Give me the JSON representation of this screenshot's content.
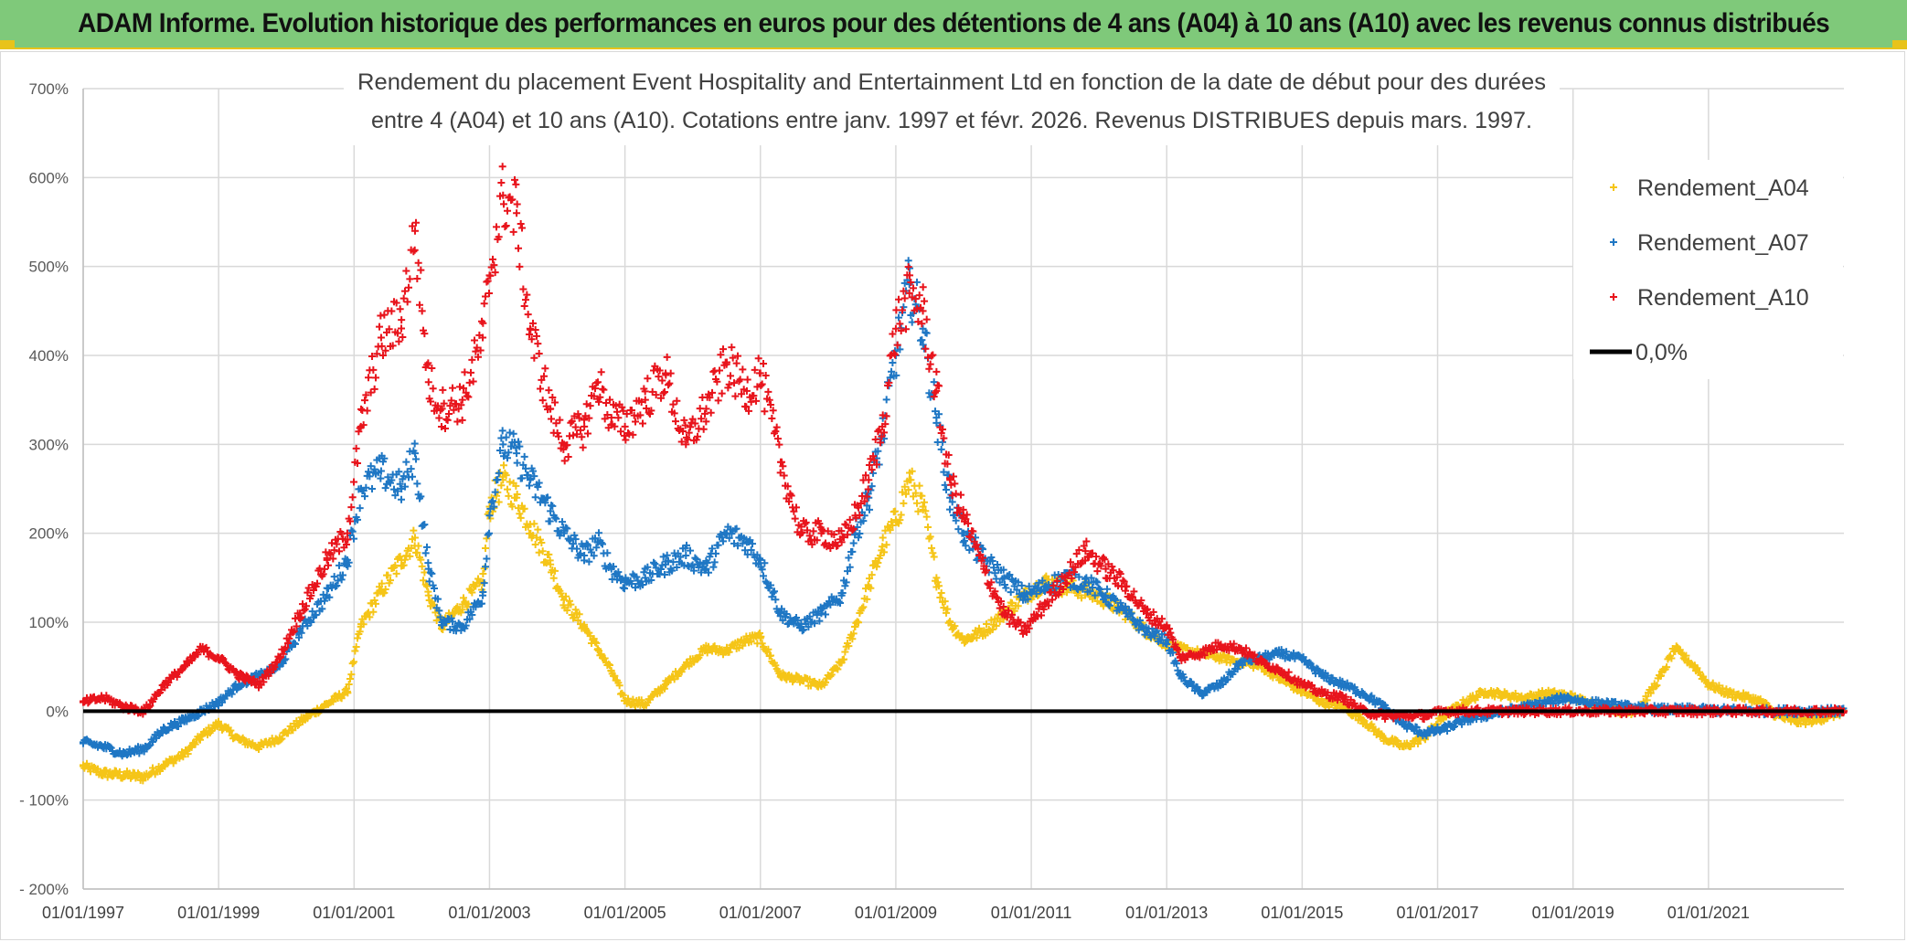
{
  "header": {
    "title": "ADAM Informe. Evolution historique des performances en euros pour des détentions de 4 ans (A04) à 10 ans (A10) avec les revenus connus distribués"
  },
  "colors": {
    "banner_bg": "#7fc97a",
    "banner_accent": "#e8c31a",
    "a04": "#f5c518",
    "a07": "#1f77c4",
    "a10": "#e8141c",
    "zero": "#000000",
    "grid": "#d9d9d9"
  },
  "chart_data": {
    "type": "scatter",
    "title_lines": [
      "Rendement du placement Event Hospitality and Entertainment Ltd en fonction de la date de début pour des durées",
      "entre 4 (A04) et 10 ans (A10). Cotations entre janv. 1997 et févr. 2026. Revenus DISTRIBUES depuis mars. 1997."
    ],
    "x_unit": "year",
    "xlim": [
      1997,
      2023.0
    ],
    "ylim": [
      -200,
      700
    ],
    "y_ticks": [
      -200,
      -100,
      0,
      100,
      200,
      300,
      400,
      500,
      600,
      700
    ],
    "y_tick_labels": [
      "- 200%",
      "- 100%",
      "0%",
      "100%",
      "200%",
      "300%",
      "400%",
      "500%",
      "600%",
      "700%"
    ],
    "x_ticks": [
      1997,
      1999,
      2001,
      2003,
      2005,
      2007,
      2009,
      2011,
      2013,
      2015,
      2017,
      2019,
      2021
    ],
    "x_tick_labels": [
      "01/01/1997",
      "01/01/1999",
      "01/01/2001",
      "01/01/2003",
      "01/01/2005",
      "01/01/2007",
      "01/01/2009",
      "01/01/2011",
      "01/01/2013",
      "01/01/2015",
      "01/01/2017",
      "01/01/2019",
      "01/01/2021"
    ],
    "legend_position": "top-right",
    "series": [
      {
        "name": "Rendement_A04",
        "marker": "plus",
        "x": [
          1997.0,
          1997.3,
          1997.6,
          1997.9,
          1998.2,
          1998.5,
          1998.75,
          1999.0,
          1999.3,
          1999.6,
          1999.9,
          2000.2,
          2000.6,
          2000.9,
          2001.1,
          2001.4,
          2001.7,
          2001.9,
          2002.1,
          2002.3,
          2002.6,
          2002.9,
          2003.0,
          2003.2,
          2003.4,
          2003.6,
          2003.9,
          2004.1,
          2004.4,
          2004.6,
          2004.8,
          2005.0,
          2005.3,
          2005.6,
          2005.9,
          2006.2,
          2006.5,
          2006.8,
          2007.0,
          2007.3,
          2007.6,
          2007.9,
          2008.2,
          2008.4,
          2008.6,
          2008.8,
          2009.0,
          2009.2,
          2009.4,
          2009.6,
          2009.8,
          2010.0,
          2010.3,
          2010.6,
          2010.9,
          2011.2,
          2011.5,
          2011.8,
          2012.1,
          2012.4,
          2012.7,
          2013.0,
          2013.2,
          2013.5,
          2013.8,
          2014.1,
          2014.4,
          2014.7,
          2015.0,
          2015.3,
          2015.6,
          2015.9,
          2016.2,
          2016.5,
          2016.8,
          2017.1,
          2017.4,
          2017.7,
          2018.0,
          2018.3,
          2018.6,
          2018.9,
          2019.2,
          2019.5,
          2019.8,
          2020.0,
          2020.3,
          2020.5,
          2020.8,
          2021.0,
          2021.3,
          2021.6,
          2021.8,
          2022.0,
          2022.3,
          2022.6,
          2023.0
        ],
        "y": [
          -62,
          -70,
          -72,
          -74,
          -60,
          -48,
          -28,
          -14,
          -32,
          -40,
          -30,
          -12,
          8,
          22,
          95,
          135,
          170,
          195,
          130,
          95,
          120,
          145,
          230,
          260,
          240,
          210,
          165,
          125,
          95,
          70,
          45,
          12,
          8,
          30,
          52,
          70,
          68,
          80,
          82,
          40,
          35,
          28,
          55,
          95,
          140,
          185,
          215,
          260,
          230,
          150,
          100,
          80,
          90,
          110,
          130,
          145,
          140,
          135,
          125,
          110,
          90,
          75,
          70,
          65,
          60,
          55,
          50,
          35,
          22,
          10,
          5,
          -10,
          -30,
          -40,
          -30,
          -5,
          10,
          22,
          18,
          15,
          20,
          18,
          10,
          5,
          -2,
          5,
          40,
          70,
          50,
          30,
          20,
          15,
          10,
          -5,
          -12,
          -10,
          0
        ]
      },
      {
        "name": "Rendement_A07",
        "marker": "plus",
        "x": [
          1997.0,
          1997.3,
          1997.6,
          1997.9,
          1998.2,
          1998.5,
          1998.75,
          1999.0,
          1999.3,
          1999.6,
          1999.9,
          2000.2,
          2000.6,
          2000.9,
          2001.1,
          2001.4,
          2001.7,
          2001.9,
          2002.1,
          2002.3,
          2002.6,
          2002.9,
          2003.0,
          2003.2,
          2003.4,
          2003.6,
          2003.9,
          2004.1,
          2004.4,
          2004.6,
          2004.8,
          2005.0,
          2005.3,
          2005.6,
          2005.9,
          2006.2,
          2006.5,
          2006.8,
          2007.0,
          2007.3,
          2007.6,
          2007.9,
          2008.2,
          2008.4,
          2008.6,
          2008.8,
          2009.0,
          2009.2,
          2009.4,
          2009.6,
          2009.8,
          2010.0,
          2010.3,
          2010.6,
          2010.9,
          2011.2,
          2011.5,
          2011.8,
          2012.1,
          2012.4,
          2012.7,
          2013.0,
          2013.2,
          2013.5,
          2013.8,
          2014.1,
          2014.4,
          2014.7,
          2015.0,
          2015.3,
          2015.6,
          2015.9,
          2016.2,
          2016.5,
          2016.8,
          2017.1,
          2017.4,
          2017.7,
          2018.0,
          2018.3,
          2018.6,
          2018.9,
          2019.2,
          2019.5,
          2019.8,
          2020.0,
          2020.3,
          2020.5,
          2020.8,
          2021.0,
          2021.3,
          2021.6,
          2021.8,
          2022.0,
          2022.3,
          2022.6,
          2023.0
        ],
        "y": [
          -35,
          -40,
          -48,
          -42,
          -20,
          -10,
          0,
          10,
          30,
          40,
          50,
          90,
          130,
          170,
          250,
          270,
          250,
          290,
          160,
          100,
          95,
          130,
          220,
          300,
          290,
          260,
          225,
          200,
          175,
          190,
          160,
          145,
          150,
          165,
          175,
          160,
          200,
          190,
          170,
          110,
          95,
          110,
          130,
          200,
          240,
          310,
          400,
          480,
          430,
          330,
          240,
          200,
          170,
          150,
          130,
          140,
          150,
          145,
          130,
          110,
          90,
          80,
          40,
          20,
          30,
          55,
          60,
          65,
          58,
          40,
          30,
          20,
          5,
          -15,
          -25,
          -20,
          -10,
          -5,
          0,
          5,
          10,
          15,
          10,
          8,
          5,
          3,
          2,
          2,
          2,
          1,
          1,
          1,
          0,
          0,
          0,
          0,
          0
        ]
      },
      {
        "name": "Rendement_A10",
        "marker": "plus",
        "x": [
          1997.0,
          1997.3,
          1997.6,
          1997.9,
          1998.2,
          1998.5,
          1998.75,
          1999.0,
          1999.3,
          1999.6,
          1999.9,
          2000.2,
          2000.6,
          2000.9,
          2001.1,
          2001.4,
          2001.7,
          2001.9,
          2002.1,
          2002.3,
          2002.6,
          2002.9,
          2003.0,
          2003.2,
          2003.4,
          2003.6,
          2003.9,
          2004.1,
          2004.4,
          2004.6,
          2004.8,
          2005.0,
          2005.3,
          2005.6,
          2005.9,
          2006.2,
          2006.5,
          2006.8,
          2007.0,
          2007.3,
          2007.6,
          2007.9,
          2008.2,
          2008.4,
          2008.6,
          2008.8,
          2009.0,
          2009.2,
          2009.4,
          2009.6,
          2009.8,
          2010.0,
          2010.3,
          2010.6,
          2010.9,
          2011.2,
          2011.5,
          2011.8,
          2012.1,
          2012.4,
          2012.7,
          2013.0,
          2013.2,
          2013.5,
          2013.8,
          2014.1,
          2014.4,
          2014.7,
          2015.0,
          2015.3,
          2015.6,
          2015.9,
          2016.2,
          2016.5,
          2016.8,
          2017.1,
          2017.4,
          2017.7,
          2018.0,
          2018.3,
          2018.6,
          2018.9,
          2019.2,
          2019.5,
          2019.8,
          2020.0,
          2020.3,
          2020.5,
          2020.8,
          2021.0,
          2021.3,
          2021.6,
          2021.8,
          2022.0,
          2022.3,
          2022.6,
          2023.0
        ],
        "y": [
          10,
          15,
          5,
          0,
          30,
          50,
          70,
          60,
          40,
          30,
          60,
          110,
          170,
          200,
          320,
          420,
          440,
          540,
          370,
          340,
          350,
          420,
          490,
          580,
          560,
          430,
          340,
          300,
          320,
          370,
          330,
          320,
          350,
          380,
          300,
          340,
          390,
          360,
          380,
          280,
          200,
          200,
          190,
          220,
          260,
          320,
          430,
          470,
          450,
          360,
          260,
          220,
          160,
          110,
          90,
          120,
          150,
          180,
          160,
          140,
          110,
          95,
          60,
          65,
          75,
          70,
          55,
          45,
          30,
          20,
          15,
          0,
          -5,
          -5,
          -5,
          0,
          0,
          0,
          0,
          0,
          0,
          0,
          0,
          0,
          0,
          0,
          0,
          0,
          0,
          0,
          0,
          0,
          0,
          0,
          0,
          0,
          0
        ]
      },
      {
        "name": "0,0%",
        "marker": "line",
        "x": [
          1997,
          2023.0
        ],
        "y": [
          0,
          0
        ]
      }
    ]
  }
}
